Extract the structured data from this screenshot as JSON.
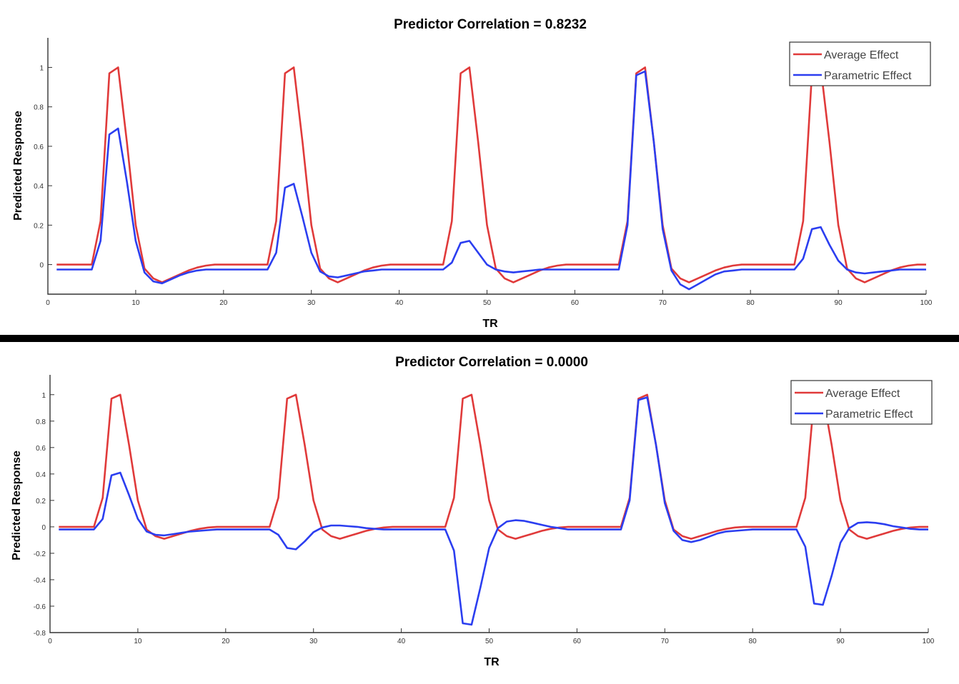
{
  "colors": {
    "average": "#e03a3a",
    "parametric": "#2b3ef0",
    "divider": "#000000"
  },
  "chart_data": [
    {
      "type": "line",
      "title": "Predictor Correlation = 0.8232",
      "xlabel": "TR",
      "ylabel": "Predicted Response",
      "xlim": [
        0,
        100
      ],
      "ylim": [
        -0.15,
        1.15
      ],
      "xticks": [
        0,
        10,
        20,
        30,
        40,
        50,
        60,
        70,
        80,
        90,
        100
      ],
      "yticks": [
        0,
        0.2,
        0.4,
        0.6,
        0.8,
        1
      ],
      "ytick_labels": [
        "0",
        "0.2",
        "0.4",
        "0.6",
        "0.8",
        "1"
      ],
      "grid": false,
      "legend": "top-right",
      "x": [
        1,
        2,
        3,
        4,
        5,
        6,
        7,
        8,
        9,
        10,
        11,
        12,
        13,
        14,
        15,
        16,
        17,
        18,
        19,
        20,
        21,
        22,
        23,
        24,
        25,
        26,
        27,
        28,
        29,
        30,
        31,
        32,
        33,
        34,
        35,
        36,
        37,
        38,
        39,
        40,
        41,
        42,
        43,
        44,
        45,
        46,
        47,
        48,
        49,
        50,
        51,
        52,
        53,
        54,
        55,
        56,
        57,
        58,
        59,
        60,
        61,
        62,
        63,
        64,
        65,
        66,
        67,
        68,
        69,
        70,
        71,
        72,
        73,
        74,
        75,
        76,
        77,
        78,
        79,
        80,
        81,
        82,
        83,
        84,
        85,
        86,
        87,
        88,
        89,
        90,
        91,
        92,
        93,
        94,
        95,
        96,
        97,
        98,
        99,
        100
      ],
      "series": [
        {
          "name": "Average Effect",
          "values": [
            0,
            0,
            0,
            0,
            0,
            0.22,
            0.97,
            1.0,
            0.62,
            0.2,
            -0.02,
            -0.07,
            -0.09,
            -0.07,
            -0.05,
            -0.03,
            -0.015,
            -0.005,
            0,
            0,
            0,
            0,
            0,
            0,
            0,
            0.22,
            0.97,
            1.0,
            0.62,
            0.2,
            -0.02,
            -0.07,
            -0.09,
            -0.07,
            -0.05,
            -0.03,
            -0.015,
            -0.005,
            0,
            0,
            0,
            0,
            0,
            0,
            0,
            0.22,
            0.97,
            1.0,
            0.62,
            0.2,
            -0.02,
            -0.07,
            -0.09,
            -0.07,
            -0.05,
            -0.03,
            -0.015,
            -0.005,
            0,
            0,
            0,
            0,
            0,
            0,
            0,
            0.22,
            0.97,
            1.0,
            0.62,
            0.2,
            -0.02,
            -0.07,
            -0.09,
            -0.07,
            -0.05,
            -0.03,
            -0.015,
            -0.005,
            0,
            0,
            0,
            0,
            0,
            0,
            0,
            0.22,
            0.97,
            1.0,
            0.62,
            0.2,
            -0.02,
            -0.07,
            -0.09,
            -0.07,
            -0.05,
            -0.03,
            -0.015,
            -0.005,
            0,
            0
          ]
        },
        {
          "name": "Parametric Effect",
          "values": [
            -0.025,
            -0.025,
            -0.025,
            -0.025,
            -0.025,
            0.12,
            0.66,
            0.69,
            0.42,
            0.12,
            -0.04,
            -0.085,
            -0.095,
            -0.075,
            -0.055,
            -0.04,
            -0.03,
            -0.025,
            -0.025,
            -0.025,
            -0.025,
            -0.025,
            -0.025,
            -0.025,
            -0.025,
            0.06,
            0.39,
            0.41,
            0.24,
            0.06,
            -0.035,
            -0.06,
            -0.065,
            -0.055,
            -0.045,
            -0.035,
            -0.03,
            -0.025,
            -0.025,
            -0.025,
            -0.025,
            -0.025,
            -0.025,
            -0.025,
            -0.025,
            0.01,
            0.11,
            0.12,
            0.06,
            0.0,
            -0.025,
            -0.035,
            -0.04,
            -0.035,
            -0.03,
            -0.025,
            -0.025,
            -0.025,
            -0.025,
            -0.025,
            -0.025,
            -0.025,
            -0.025,
            -0.025,
            -0.025,
            0.2,
            0.96,
            0.98,
            0.62,
            0.18,
            -0.03,
            -0.1,
            -0.125,
            -0.1,
            -0.075,
            -0.05,
            -0.035,
            -0.03,
            -0.025,
            -0.025,
            -0.025,
            -0.025,
            -0.025,
            -0.025,
            -0.025,
            0.03,
            0.18,
            0.19,
            0.1,
            0.02,
            -0.025,
            -0.04,
            -0.045,
            -0.04,
            -0.035,
            -0.03,
            -0.025,
            -0.025,
            -0.025,
            -0.025
          ]
        }
      ]
    },
    {
      "type": "line",
      "title": "Predictor Correlation = 0.0000",
      "xlabel": "TR",
      "ylabel": "Predicted Response",
      "xlim": [
        0,
        100
      ],
      "ylim": [
        -0.8,
        1.15
      ],
      "xticks": [
        0,
        10,
        20,
        30,
        40,
        50,
        60,
        70,
        80,
        90,
        100
      ],
      "yticks": [
        -0.8,
        -0.6,
        -0.4,
        -0.2,
        0,
        0.2,
        0.4,
        0.6,
        0.8,
        1
      ],
      "ytick_labels": [
        "-0.8",
        "-0.6",
        "-0.4",
        "-0.2",
        "0",
        "0.2",
        "0.4",
        "0.6",
        "0.8",
        "1"
      ],
      "grid": false,
      "legend": "top-right",
      "x": [
        1,
        2,
        3,
        4,
        5,
        6,
        7,
        8,
        9,
        10,
        11,
        12,
        13,
        14,
        15,
        16,
        17,
        18,
        19,
        20,
        21,
        22,
        23,
        24,
        25,
        26,
        27,
        28,
        29,
        30,
        31,
        32,
        33,
        34,
        35,
        36,
        37,
        38,
        39,
        40,
        41,
        42,
        43,
        44,
        45,
        46,
        47,
        48,
        49,
        50,
        51,
        52,
        53,
        54,
        55,
        56,
        57,
        58,
        59,
        60,
        61,
        62,
        63,
        64,
        65,
        66,
        67,
        68,
        69,
        70,
        71,
        72,
        73,
        74,
        75,
        76,
        77,
        78,
        79,
        80,
        81,
        82,
        83,
        84,
        85,
        86,
        87,
        88,
        89,
        90,
        91,
        92,
        93,
        94,
        95,
        96,
        97,
        98,
        99,
        100
      ],
      "series": [
        {
          "name": "Average Effect",
          "values": [
            0,
            0,
            0,
            0,
            0,
            0.22,
            0.97,
            1.0,
            0.62,
            0.2,
            -0.02,
            -0.07,
            -0.09,
            -0.07,
            -0.05,
            -0.03,
            -0.015,
            -0.005,
            0,
            0,
            0,
            0,
            0,
            0,
            0,
            0.22,
            0.97,
            1.0,
            0.62,
            0.2,
            -0.02,
            -0.07,
            -0.09,
            -0.07,
            -0.05,
            -0.03,
            -0.015,
            -0.005,
            0,
            0,
            0,
            0,
            0,
            0,
            0,
            0.22,
            0.97,
            1.0,
            0.62,
            0.2,
            -0.02,
            -0.07,
            -0.09,
            -0.07,
            -0.05,
            -0.03,
            -0.015,
            -0.005,
            0,
            0,
            0,
            0,
            0,
            0,
            0,
            0.22,
            0.97,
            1.0,
            0.62,
            0.2,
            -0.02,
            -0.07,
            -0.09,
            -0.07,
            -0.05,
            -0.03,
            -0.015,
            -0.005,
            0,
            0,
            0,
            0,
            0,
            0,
            0,
            0.22,
            0.97,
            1.0,
            0.62,
            0.2,
            -0.02,
            -0.07,
            -0.09,
            -0.07,
            -0.05,
            -0.03,
            -0.015,
            -0.005,
            0,
            0
          ]
        },
        {
          "name": "Parametric Effect",
          "values": [
            -0.02,
            -0.02,
            -0.02,
            -0.02,
            -0.02,
            0.06,
            0.39,
            0.41,
            0.24,
            0.06,
            -0.035,
            -0.06,
            -0.065,
            -0.055,
            -0.045,
            -0.035,
            -0.03,
            -0.025,
            -0.02,
            -0.02,
            -0.02,
            -0.02,
            -0.02,
            -0.02,
            -0.02,
            -0.06,
            -0.16,
            -0.17,
            -0.11,
            -0.04,
            -0.005,
            0.01,
            0.01,
            0.005,
            0,
            -0.01,
            -0.015,
            -0.02,
            -0.02,
            -0.02,
            -0.02,
            -0.02,
            -0.02,
            -0.02,
            -0.02,
            -0.18,
            -0.73,
            -0.74,
            -0.46,
            -0.16,
            -0.01,
            0.04,
            0.05,
            0.045,
            0.03,
            0.015,
            0,
            -0.01,
            -0.02,
            -0.02,
            -0.02,
            -0.02,
            -0.02,
            -0.02,
            -0.02,
            0.2,
            0.96,
            0.98,
            0.62,
            0.18,
            -0.03,
            -0.1,
            -0.115,
            -0.1,
            -0.075,
            -0.05,
            -0.035,
            -0.03,
            -0.025,
            -0.02,
            -0.02,
            -0.02,
            -0.02,
            -0.02,
            -0.02,
            -0.15,
            -0.58,
            -0.59,
            -0.37,
            -0.12,
            -0.01,
            0.03,
            0.035,
            0.03,
            0.02,
            0.005,
            -0.005,
            -0.015,
            -0.02,
            -0.02
          ]
        }
      ]
    }
  ]
}
